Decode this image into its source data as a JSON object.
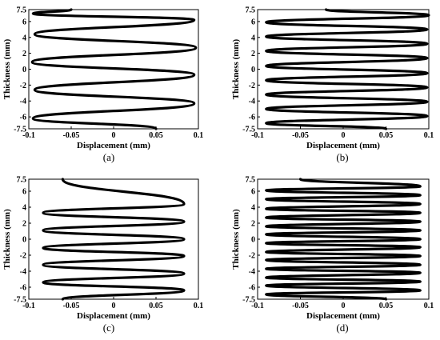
{
  "chart_data": [
    {
      "type": "line",
      "panel_label": "(a)",
      "xlabel": "Displacement (mm)",
      "ylabel": "Thickness (mm)",
      "xlim": [
        -0.1,
        0.1
      ],
      "ylim": [
        -7.5,
        7.5
      ],
      "xticks": [
        -0.1,
        -0.05,
        0,
        0.05,
        0.1
      ],
      "xtick_labels": [
        "-0.1",
        "-0.05",
        "0",
        "0.05",
        "0.1"
      ],
      "yticks": [
        7.5,
        6,
        4,
        2,
        0,
        -2,
        -4,
        -6,
        -7.5
      ],
      "ytick_labels": [
        "7.5",
        "6",
        "4",
        "2",
        "0",
        "-2",
        "-4",
        "-6",
        "-7.5"
      ],
      "series": [
        {
          "x": [
            0.05,
            -0.095,
            0.095,
            -0.093,
            0.095,
            -0.096,
            0.097,
            -0.093,
            0.095,
            -0.095,
            -0.05
          ],
          "y": [
            -7.5,
            -6.2,
            -4.3,
            -2.6,
            -0.7,
            0.9,
            2.7,
            4.4,
            6.2,
            7.0,
            7.5
          ]
        }
      ]
    },
    {
      "type": "line",
      "panel_label": "(b)",
      "xlabel": "Displacement (mm)",
      "ylabel": "Thickness (mm)",
      "xlim": [
        -0.1,
        0.1
      ],
      "ylim": [
        -7.5,
        7.5
      ],
      "xticks": [
        -0.1,
        -0.05,
        0,
        0.05,
        0.1
      ],
      "xtick_labels": [
        "-0.1",
        "-0.05",
        "0",
        "0.05",
        "0.1"
      ],
      "yticks": [
        7.5,
        6,
        4,
        2,
        0,
        -2,
        -4,
        -6,
        -7.5
      ],
      "ytick_labels": [
        "7.5",
        "6",
        "4",
        "2",
        "0",
        "-2",
        "-4",
        "-6",
        "-7.5"
      ],
      "series": [
        {
          "x": [
            0.05,
            -0.09,
            0.098,
            -0.09,
            0.098,
            -0.09,
            0.098,
            -0.09,
            0.098,
            -0.09,
            0.098,
            -0.09,
            0.098,
            -0.09,
            0.098,
            -0.09,
            0.1,
            -0.02
          ],
          "y": [
            -7.5,
            -6.8,
            -5.9,
            -5.0,
            -4.1,
            -3.2,
            -2.3,
            -1.4,
            -0.5,
            0.4,
            1.4,
            2.3,
            3.2,
            4.1,
            5.0,
            5.9,
            6.8,
            7.5
          ]
        }
      ]
    },
    {
      "type": "line",
      "panel_label": "(c)",
      "xlabel": "Displacement (mm)",
      "ylabel": "Thickness (mm)",
      "xlim": [
        -0.1,
        0.1
      ],
      "ylim": [
        -7.5,
        7.5
      ],
      "xticks": [
        -0.1,
        -0.05,
        0,
        0.05,
        0.1
      ],
      "xtick_labels": [
        "-0.1",
        "-0.05",
        "0",
        "0.05",
        "0.1"
      ],
      "yticks": [
        7.5,
        6,
        4,
        2,
        0,
        -2,
        -4,
        -6,
        -7.5
      ],
      "ytick_labels": [
        "7.5",
        "6",
        "4",
        "2",
        "0",
        "-2",
        "-4",
        "-6",
        "-7.5"
      ],
      "series": [
        {
          "x": [
            -0.06,
            0.083,
            -0.083,
            0.083,
            -0.083,
            0.083,
            -0.083,
            0.083,
            -0.083,
            0.083,
            -0.083,
            0.083,
            -0.06
          ],
          "y": [
            -7.5,
            -6.4,
            -5.4,
            -4.3,
            -3.2,
            -2.1,
            -1.1,
            0.0,
            1.1,
            2.2,
            3.3,
            4.4,
            7.5
          ]
        }
      ]
    },
    {
      "type": "line",
      "panel_label": "(d)",
      "xlabel": "Displacement (mm)",
      "ylabel": "Thickness (mm)",
      "xlim": [
        -0.1,
        0.1
      ],
      "ylim": [
        -7.5,
        7.5
      ],
      "xticks": [
        -0.1,
        -0.05,
        0,
        0.05,
        0.1
      ],
      "xtick_labels": [
        "-0.1",
        "-0.05",
        "0",
        "0.05",
        "0.1"
      ],
      "yticks": [
        7.5,
        6,
        4,
        2,
        0,
        -2,
        -4,
        -6,
        -7.5
      ],
      "ytick_labels": [
        "7.5",
        "6",
        "4",
        "2",
        "0",
        "-2",
        "-4",
        "-6",
        "-7.5"
      ],
      "series": [
        {
          "x": [
            0.05,
            -0.09,
            0.09,
            -0.09,
            0.09,
            -0.09,
            0.09,
            -0.09,
            0.09,
            -0.09,
            0.09,
            -0.09,
            0.09,
            -0.09,
            0.09,
            -0.09,
            0.09,
            -0.09,
            0.09,
            -0.09,
            0.09,
            -0.09,
            0.09,
            -0.09,
            0.09,
            -0.09,
            0.09,
            -0.05
          ],
          "y": [
            -7.5,
            -6.9,
            -6.4,
            -5.8,
            -5.3,
            -4.8,
            -4.2,
            -3.7,
            -3.2,
            -2.6,
            -2.1,
            -1.6,
            -1.0,
            -0.5,
            0.0,
            0.6,
            1.1,
            1.6,
            2.2,
            2.7,
            3.3,
            3.8,
            4.4,
            5.0,
            5.5,
            6.1,
            6.6,
            7.5
          ]
        }
      ]
    }
  ]
}
